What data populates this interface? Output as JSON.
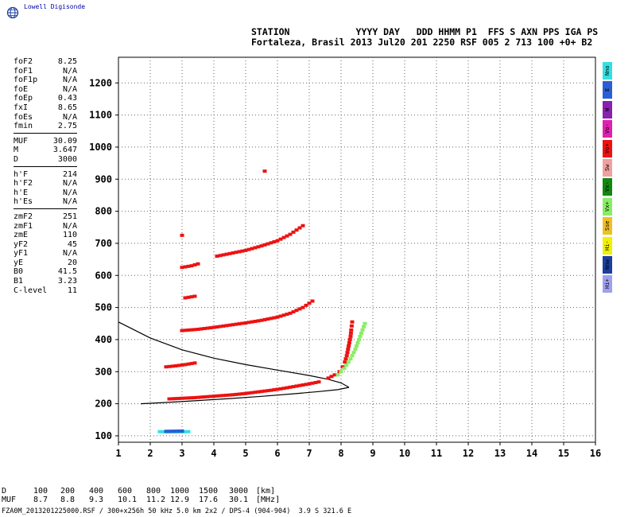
{
  "logo": {
    "text": "Lowell Digisonde",
    "icon": "globe-icon"
  },
  "header": {
    "line1": "STATION            YYYY DAY   DDD HHMM P1  FFS S AXN PPS IGA PS",
    "line2": "Fortaleza, Brasil 2013 Jul20 201 2250 RSF 005 2 713 100 +0+ B2"
  },
  "params": [
    [
      {
        "n": "foF2",
        "v": "8.25"
      },
      {
        "n": "foF1",
        "v": "N/A"
      },
      {
        "n": "foF1p",
        "v": "N/A"
      },
      {
        "n": "foE",
        "v": "N/A"
      },
      {
        "n": "foEp",
        "v": "0.43"
      },
      {
        "n": "fxI",
        "v": "8.65"
      },
      {
        "n": "foEs",
        "v": "N/A"
      },
      {
        "n": "fmin",
        "v": "2.75"
      }
    ],
    [
      {
        "n": "MUF",
        "v": "30.09"
      },
      {
        "n": "M",
        "v": "3.647"
      },
      {
        "n": "D",
        "v": "3000"
      }
    ],
    [
      {
        "n": "h'F",
        "v": "214"
      },
      {
        "n": "h'F2",
        "v": "N/A"
      },
      {
        "n": "h'E",
        "v": "N/A"
      },
      {
        "n": "h'Es",
        "v": "N/A"
      }
    ],
    [
      {
        "n": "zmF2",
        "v": "251"
      },
      {
        "n": "zmF1",
        "v": "N/A"
      },
      {
        "n": "zmE",
        "v": "110"
      },
      {
        "n": "yF2",
        "v": "45"
      },
      {
        "n": "yF1",
        "v": "N/A"
      },
      {
        "n": "yE",
        "v": "20"
      },
      {
        "n": "B0",
        "v": "41.5"
      },
      {
        "n": "B1",
        "v": "3.23"
      },
      {
        "n": "C-level",
        "v": "11"
      }
    ]
  ],
  "legend": [
    {
      "label": "Nno",
      "color": "#33e0e0"
    },
    {
      "label": "E",
      "color": "#2a5fd4"
    },
    {
      "label": "W",
      "color": "#8a1fb0"
    },
    {
      "label": "Vo-",
      "color": "#e020b0"
    },
    {
      "label": "Vo+",
      "color": "#ee1111"
    },
    {
      "label": "Sw",
      "color": "#f0a0a0"
    },
    {
      "label": "Vx-",
      "color": "#118811"
    },
    {
      "label": "Vx+",
      "color": "#88ee66"
    },
    {
      "label": "Sse",
      "color": "#f0c020"
    },
    {
      "label": "Hi-",
      "color": "#f0f000"
    },
    {
      "label": "Nnw",
      "color": "#1a3fa0"
    },
    {
      "label": "Hi+",
      "color": "#a0a0f0"
    }
  ],
  "muf_table": {
    "d_label": "D",
    "muf_label": "MUF",
    "d_values": [
      "100",
      "200",
      "400",
      "600",
      "800",
      "1000",
      "1500",
      "3000"
    ],
    "muf_values": [
      "8.7",
      "8.8",
      "9.3",
      "10.1",
      "11.2",
      "12.9",
      "17.6",
      "30.1"
    ],
    "d_unit": "[km]",
    "muf_unit": "[MHz]"
  },
  "footer": "FZA0M_2013201225000.RSF / 300+x256h 50 kHz 5.0 km 2x2 / DPS-4 (904-904)  3.9 S 321.6 E",
  "chart_data": {
    "type": "scatter",
    "xlim": [
      1,
      16
    ],
    "ylim": [
      80,
      1280
    ],
    "xticks": [
      1,
      2,
      3,
      4,
      5,
      6,
      7,
      8,
      9,
      10,
      11,
      12,
      13,
      14,
      15,
      16
    ],
    "yticks": [
      100,
      200,
      300,
      400,
      500,
      600,
      700,
      800,
      900,
      1000,
      1100,
      1200
    ],
    "grid": true,
    "series": [
      {
        "color": "#ee1111",
        "points": [
          [
            2.6,
            215
          ],
          [
            3.0,
            217
          ],
          [
            3.4,
            219
          ],
          [
            3.8,
            222
          ],
          [
            4.2,
            225
          ],
          [
            4.6,
            228
          ],
          [
            5.0,
            232
          ],
          [
            5.4,
            237
          ],
          [
            5.8,
            242
          ],
          [
            6.2,
            248
          ],
          [
            6.6,
            255
          ],
          [
            7.0,
            262
          ],
          [
            7.3,
            268
          ]
        ]
      },
      {
        "color": "#ee1111",
        "points": [
          [
            7.6,
            280
          ],
          [
            7.8,
            290
          ],
          [
            7.95,
            300
          ],
          [
            8.05,
            315
          ],
          [
            8.12,
            330
          ],
          [
            8.18,
            350
          ],
          [
            8.22,
            370
          ],
          [
            8.26,
            390
          ],
          [
            8.3,
            410
          ],
          [
            8.32,
            430
          ],
          [
            8.35,
            455
          ]
        ]
      },
      {
        "color": "#ee1111",
        "points": [
          [
            2.5,
            315
          ],
          [
            2.8,
            318
          ],
          [
            3.1,
            322
          ],
          [
            3.4,
            327
          ]
        ]
      },
      {
        "color": "#ee1111",
        "points": [
          [
            3.0,
            428
          ],
          [
            3.5,
            432
          ],
          [
            4.0,
            438
          ],
          [
            4.5,
            445
          ],
          [
            5.0,
            452
          ],
          [
            5.5,
            460
          ],
          [
            6.0,
            470
          ],
          [
            6.4,
            482
          ],
          [
            6.8,
            500
          ],
          [
            7.1,
            520
          ]
        ]
      },
      {
        "color": "#ee1111",
        "points": [
          [
            3.0,
            625
          ],
          [
            3.3,
            630
          ],
          [
            3.5,
            636
          ]
        ]
      },
      {
        "color": "#ee1111",
        "points": [
          [
            3.1,
            530
          ],
          [
            3.4,
            535
          ]
        ]
      },
      {
        "color": "#ee1111",
        "points": [
          [
            4.1,
            660
          ],
          [
            4.5,
            668
          ],
          [
            5.0,
            678
          ],
          [
            5.5,
            692
          ],
          [
            6.0,
            708
          ],
          [
            6.4,
            728
          ],
          [
            6.8,
            755
          ]
        ]
      },
      {
        "color": "#ee1111",
        "points": [
          [
            3.0,
            725
          ],
          [
            5.6,
            925
          ]
        ]
      },
      {
        "color": "#88ee66",
        "points": [
          [
            7.9,
            290
          ],
          [
            8.1,
            310
          ],
          [
            8.3,
            340
          ],
          [
            8.45,
            370
          ],
          [
            8.6,
            410
          ],
          [
            8.75,
            450
          ]
        ]
      },
      {
        "color": "#33e0e0",
        "points": [
          [
            2.3,
            113
          ],
          [
            2.6,
            112
          ],
          [
            2.9,
            112
          ],
          [
            3.2,
            113
          ]
        ]
      },
      {
        "color": "#2a5fd4",
        "points": [
          [
            2.5,
            114
          ],
          [
            3.0,
            115
          ]
        ]
      }
    ],
    "profile_curves": [
      {
        "points": [
          [
            1.0,
            455
          ],
          [
            2.0,
            405
          ],
          [
            3.0,
            368
          ],
          [
            4.0,
            342
          ],
          [
            5.0,
            322
          ],
          [
            6.0,
            305
          ],
          [
            7.0,
            288
          ],
          [
            7.6,
            276
          ],
          [
            8.0,
            265
          ],
          [
            8.25,
            251
          ]
        ]
      },
      {
        "points": [
          [
            1.7,
            200
          ],
          [
            2.5,
            204
          ],
          [
            3.5,
            210
          ],
          [
            4.5,
            216
          ],
          [
            5.5,
            223
          ],
          [
            6.5,
            231
          ],
          [
            7.3,
            238
          ],
          [
            7.9,
            244
          ],
          [
            8.25,
            251
          ]
        ]
      }
    ],
    "xlabel": "",
    "ylabel": ""
  }
}
